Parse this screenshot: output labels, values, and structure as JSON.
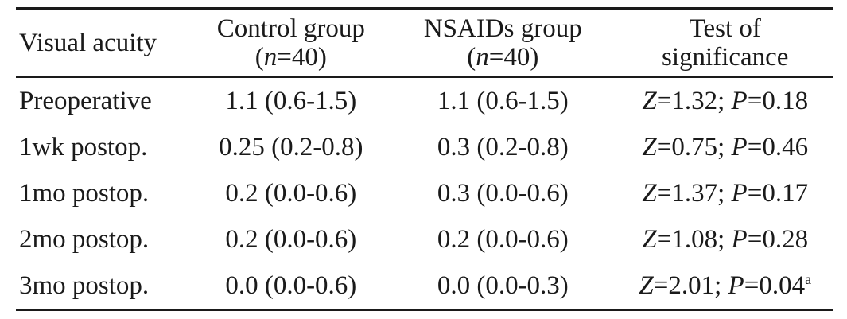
{
  "table": {
    "headers": {
      "col0": "Visual acuity",
      "col1_line1": "Control group",
      "col1_n_label": "n",
      "col1_n_value": "=40",
      "col2_line1": "NSAIDs group",
      "col2_n_label": "n",
      "col2_n_value": "=40",
      "col3_line1": "Test of",
      "col3_line2": "significance"
    },
    "rows": [
      {
        "label": "Preoperative",
        "control": "1.1 (0.6-1.5)",
        "nsaids": "1.1 (0.6-1.5)",
        "z_label": "Z",
        "z_value": "=1.32; ",
        "p_label": "P",
        "p_value": "=0.18",
        "footnote": ""
      },
      {
        "label": "1wk postop.",
        "control": "0.25 (0.2-0.8)",
        "nsaids": "0.3 (0.2-0.8)",
        "z_label": "Z",
        "z_value": "=0.75; ",
        "p_label": "P",
        "p_value": "=0.46",
        "footnote": ""
      },
      {
        "label": "1mo postop.",
        "control": "0.2 (0.0-0.6)",
        "nsaids": "0.3 (0.0-0.6)",
        "z_label": "Z",
        "z_value": "=1.37; ",
        "p_label": "P",
        "p_value": "=0.17",
        "footnote": ""
      },
      {
        "label": "2mo postop.",
        "control": "0.2 (0.0-0.6)",
        "nsaids": "0.2 (0.0-0.6)",
        "z_label": "Z",
        "z_value": "=1.08; ",
        "p_label": "P",
        "p_value": "=0.28",
        "footnote": ""
      },
      {
        "label": "3mo postop.",
        "control": "0.0 (0.0-0.6)",
        "nsaids": "0.0 (0.0-0.3)",
        "z_label": "Z",
        "z_value": "=2.01; ",
        "p_label": "P",
        "p_value": "=0.04",
        "footnote": "a"
      }
    ]
  }
}
